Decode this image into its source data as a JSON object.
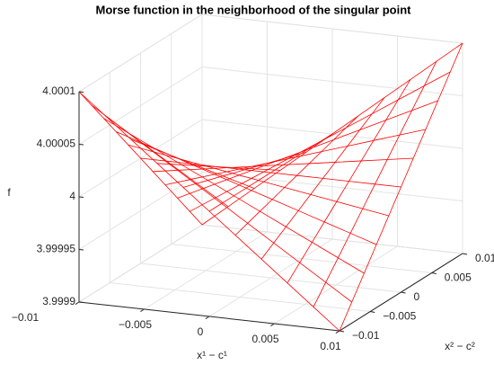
{
  "chart_data": {
    "type": "mesh",
    "title": "Morse function in the neighborhood of the singular point",
    "xlabel": "x¹ − c¹",
    "ylabel": "x² − c²",
    "zlabel": "f",
    "x": [
      -0.01,
      -0.008,
      -0.006,
      -0.004,
      -0.002,
      0,
      0.002,
      0.004,
      0.006,
      0.008,
      0.01
    ],
    "y": [
      -0.01,
      -0.008,
      -0.006,
      -0.004,
      -0.002,
      0,
      0.002,
      0.004,
      0.006,
      0.008,
      0.01
    ],
    "z": [
      [
        4.0001,
        4.00008,
        4.00006,
        4.00004,
        4.00002,
        4,
        3.99998,
        3.99996,
        3.99994,
        3.99992,
        3.9999
      ],
      [
        4.00008,
        4.000064,
        4.000048,
        4.000032,
        4.000016,
        4,
        3.999984,
        3.999968,
        3.999952,
        3.999936,
        3.99992
      ],
      [
        4.00006,
        4.000048,
        4.000036,
        4.000024,
        4.000012,
        4,
        3.999988,
        3.999976,
        3.999964,
        3.999952,
        3.99994
      ],
      [
        4.00004,
        4.000032,
        4.000024,
        4.000016,
        4.000008,
        4,
        3.999992,
        3.999984,
        3.999976,
        3.999968,
        3.99996
      ],
      [
        4.00002,
        4.000016,
        4.000012,
        4.000008,
        4.000004,
        4,
        3.999996,
        3.999992,
        3.999988,
        3.999984,
        3.99998
      ],
      [
        4,
        4,
        4,
        4,
        4,
        4,
        4,
        4,
        4,
        4,
        4
      ],
      [
        3.99998,
        3.999984,
        3.999988,
        3.999992,
        3.999996,
        4,
        4.000004,
        4.000008,
        4.000012,
        4.000016,
        4.00002
      ],
      [
        3.99996,
        3.999968,
        3.999976,
        3.999984,
        3.999992,
        4,
        4.000008,
        4.000016,
        4.000024,
        4.000032,
        4.00004
      ],
      [
        3.99994,
        3.999952,
        3.999964,
        3.999976,
        3.999988,
        4,
        4.000012,
        4.000024,
        4.000036,
        4.000048,
        4.00006
      ],
      [
        3.99992,
        3.999936,
        3.999952,
        3.999968,
        3.999984,
        4,
        4.000016,
        4.000032,
        4.000048,
        4.000064,
        4.00008
      ],
      [
        3.9999,
        3.99992,
        3.99994,
        3.99996,
        3.99998,
        4,
        4.00002,
        4.00004,
        4.00006,
        4.00008,
        4.0001
      ]
    ],
    "color": "#ff0000",
    "xlim": [
      -0.01,
      0.01
    ],
    "ylim": [
      -0.01,
      0.01
    ],
    "zlim": [
      3.9999,
      4.0001
    ],
    "xticks": [
      {
        "value": -0.01,
        "label": "−0.01"
      },
      {
        "value": -0.005,
        "label": "−0.005"
      },
      0,
      0.005,
      0.01
    ],
    "yticks": [
      {
        "value": -0.01,
        "label": "−0.01"
      },
      {
        "value": -0.005,
        "label": "−0.005"
      },
      0,
      0.005,
      0.01
    ],
    "zticks": [
      3.9999,
      3.99995,
      4,
      4.00005,
      4.0001
    ],
    "grid": true
  }
}
